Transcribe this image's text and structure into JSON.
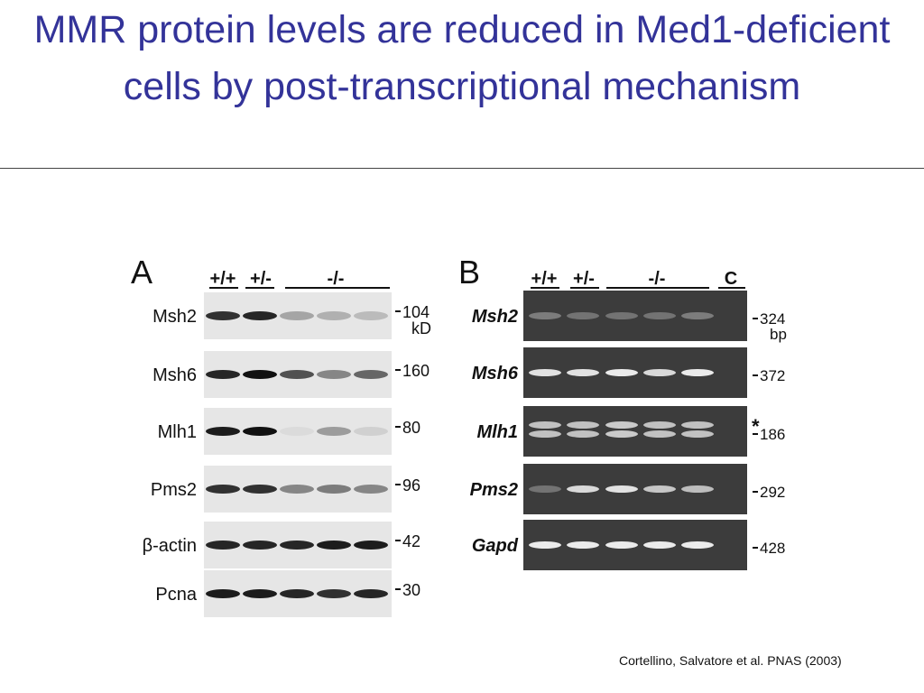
{
  "title": "MMR protein levels are reduced in Med1-deficient cells by post-transcriptional mechanism",
  "panel_a": {
    "label": "A",
    "lanes": [
      "+/+",
      "+/-",
      "-/-"
    ],
    "rows": [
      {
        "name": "Msh2",
        "marker": "104",
        "unit": "kD"
      },
      {
        "name": "Msh6",
        "marker": "160"
      },
      {
        "name": "Mlh1",
        "marker": "80"
      },
      {
        "name": "Pms2",
        "marker": "96"
      },
      {
        "name": "β-actin",
        "marker": "42"
      },
      {
        "name": "Pcna",
        "marker": "30"
      }
    ]
  },
  "panel_b": {
    "label": "B",
    "lanes": [
      "+/+",
      "+/-",
      "-/-",
      "C"
    ],
    "rows": [
      {
        "name": "Msh2",
        "marker": "324",
        "unit": "bp"
      },
      {
        "name": "Msh6",
        "marker": "372"
      },
      {
        "name": "Mlh1",
        "marker": "186",
        "note": "*"
      },
      {
        "name": "Pms2",
        "marker": "292"
      },
      {
        "name": "Gapd",
        "marker": "428"
      }
    ]
  },
  "citation": "Cortellino, Salvatore et al. PNAS (2003)"
}
